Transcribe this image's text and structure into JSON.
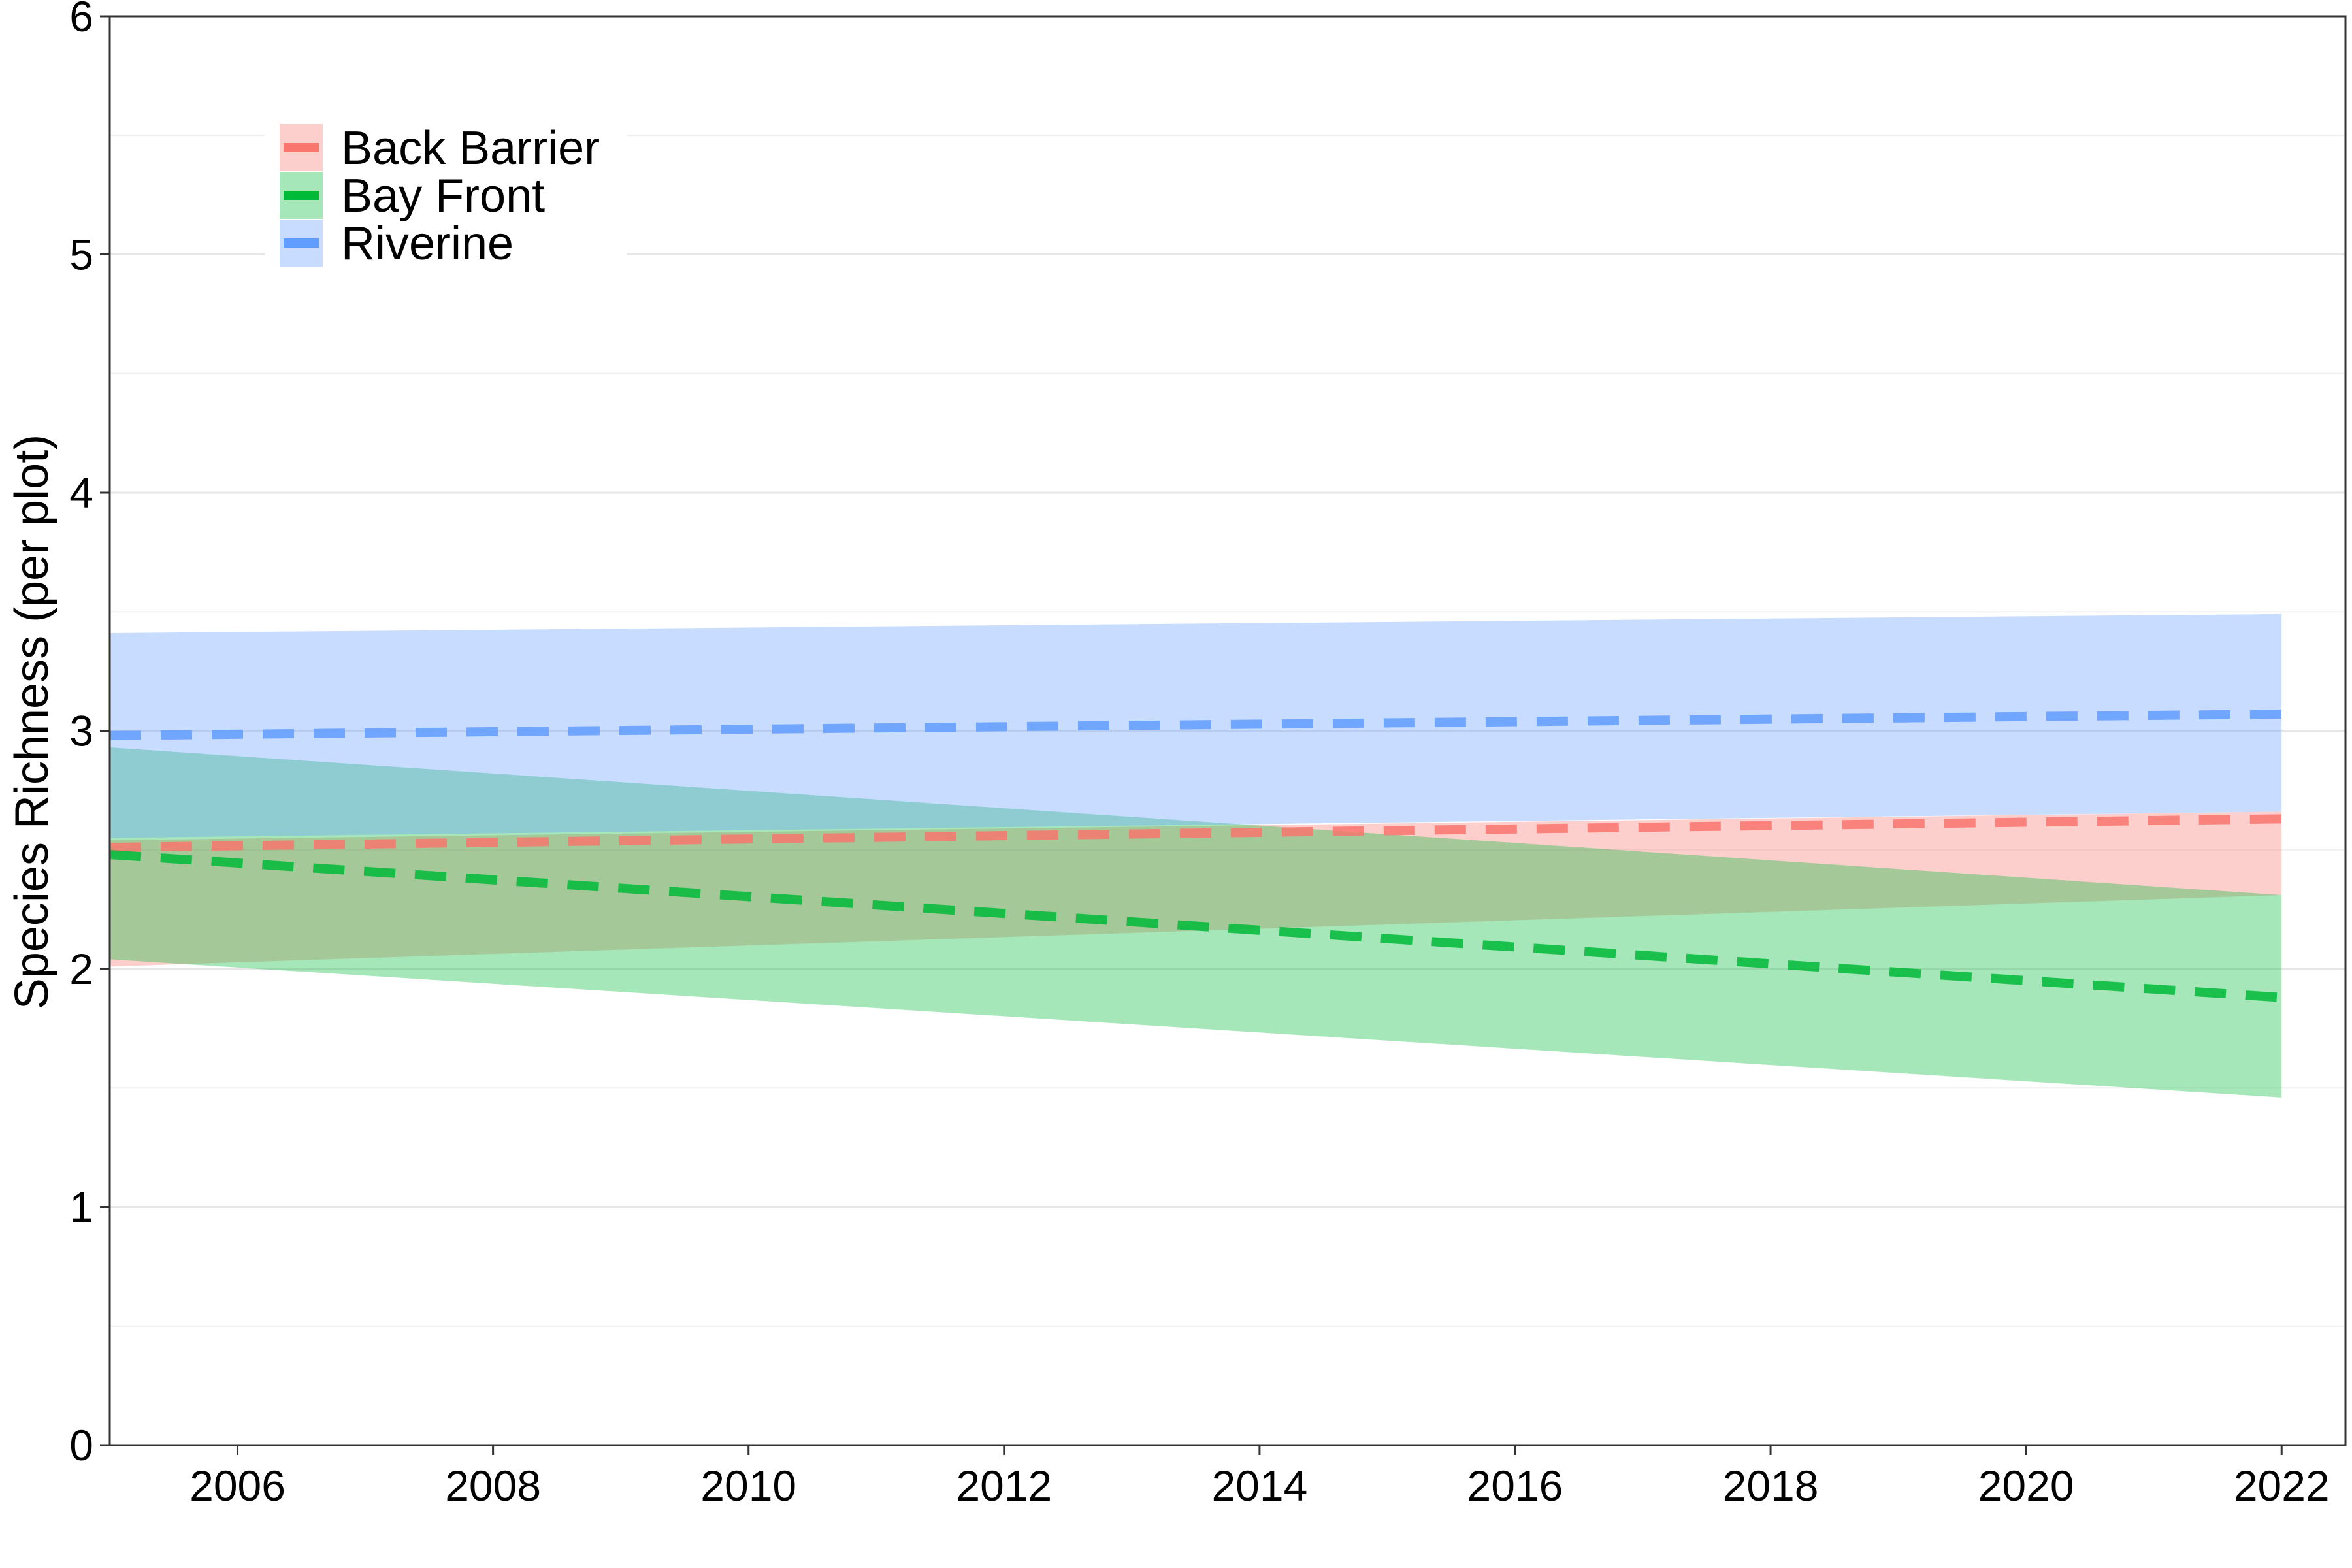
{
  "chart_data": {
    "type": "line",
    "title": "",
    "xlabel": "",
    "ylabel": "Species Richness (per plot)",
    "xlim": [
      2005,
      2022.5
    ],
    "ylim": [
      0,
      6
    ],
    "x_ticks": [
      2006,
      2008,
      2010,
      2012,
      2014,
      2016,
      2018,
      2020,
      2022
    ],
    "y_ticks": [
      0,
      1,
      2,
      3,
      4,
      5,
      6
    ],
    "grid": true,
    "legend_position": "top-left",
    "line_style": "dashed",
    "series": [
      {
        "name": "Back Barrier",
        "color": "#F8766D",
        "x": [
          2005,
          2022
        ],
        "fit": [
          2.51,
          2.63
        ],
        "lower": [
          2.01,
          2.31
        ],
        "upper": [
          2.54,
          2.66
        ]
      },
      {
        "name": "Bay Front",
        "color": "#00BA38",
        "x": [
          2005,
          2022
        ],
        "fit": [
          2.48,
          1.88
        ],
        "lower": [
          2.04,
          1.46
        ],
        "upper": [
          2.93,
          2.31
        ]
      },
      {
        "name": "Riverine",
        "color": "#619CFF",
        "x": [
          2005,
          2022
        ],
        "fit": [
          2.98,
          3.07
        ],
        "lower": [
          2.55,
          2.66
        ],
        "upper": [
          3.41,
          3.49
        ]
      }
    ]
  }
}
